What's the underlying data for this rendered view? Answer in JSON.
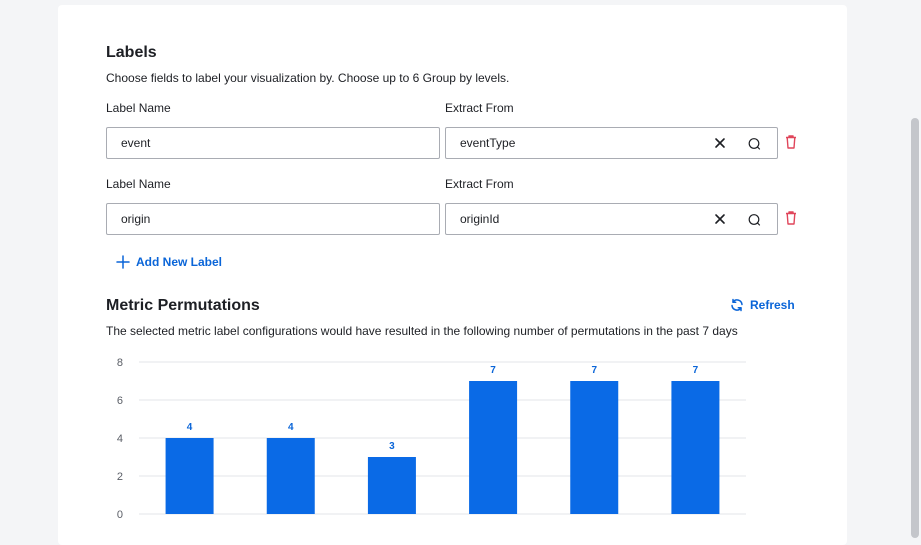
{
  "labels_section": {
    "title": "Labels",
    "description": "Choose fields to label your visualization by. Choose up to 6 Group by levels.",
    "rows": [
      {
        "label_name_caption": "Label Name",
        "extract_from_caption": "Extract From",
        "label_name_value": "event",
        "extract_from_value": "eventType"
      },
      {
        "label_name_caption": "Label Name",
        "extract_from_caption": "Extract From",
        "label_name_value": "origin",
        "extract_from_value": "originId"
      }
    ],
    "add_label": "Add New Label"
  },
  "metric_section": {
    "title": "Metric Permutations",
    "refresh": "Refresh",
    "description": "The selected metric label configurations would have resulted in the following number of permutations in the past 7 days"
  },
  "colors": {
    "accent": "#0a65d8",
    "bar": "#0a6ae6",
    "danger": "#e0455a"
  },
  "chart_data": {
    "type": "bar",
    "categories": [
      "",
      "",
      "",
      "",
      "",
      ""
    ],
    "values": [
      4,
      4,
      3,
      7,
      7,
      7
    ],
    "data_labels": [
      "4",
      "4",
      "3",
      "7",
      "7",
      "7"
    ],
    "y_ticks": [
      "0",
      "2",
      "4",
      "6",
      "8"
    ],
    "ylim": [
      0,
      8
    ],
    "grid": true
  }
}
